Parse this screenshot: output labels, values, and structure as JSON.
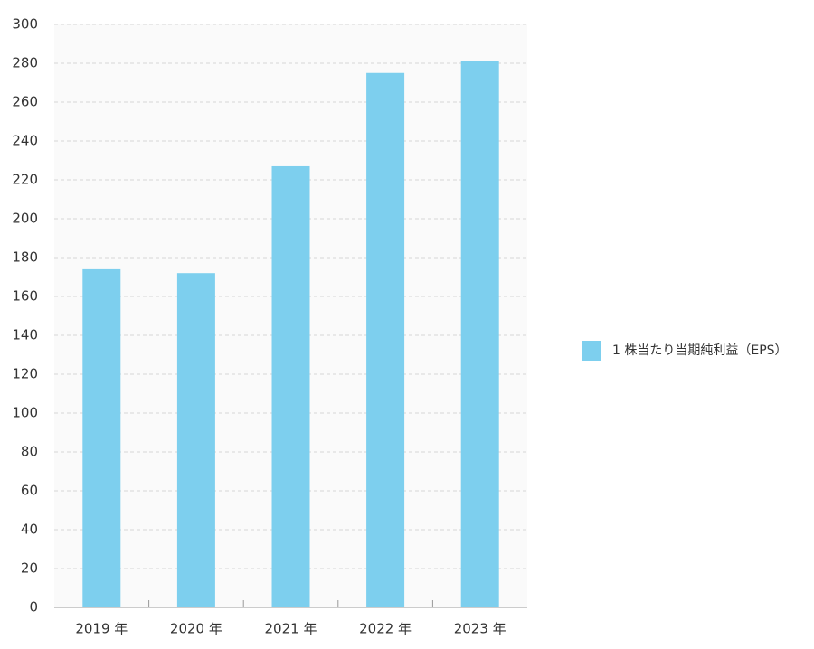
{
  "chart_data": {
    "type": "bar",
    "categories": [
      "2019 年",
      "2020 年",
      "2021 年",
      "2022 年",
      "2023 年"
    ],
    "series": [
      {
        "name": "1 株当たり当期純利益（EPS）",
        "color": "#7dcfee",
        "values": [
          174,
          172,
          227,
          275,
          281
        ]
      }
    ],
    "ylim": [
      0,
      300
    ],
    "yticks": [
      0,
      20,
      40,
      60,
      80,
      100,
      120,
      140,
      160,
      180,
      200,
      220,
      240,
      260,
      280,
      300
    ],
    "grid": true,
    "legend": "right"
  }
}
